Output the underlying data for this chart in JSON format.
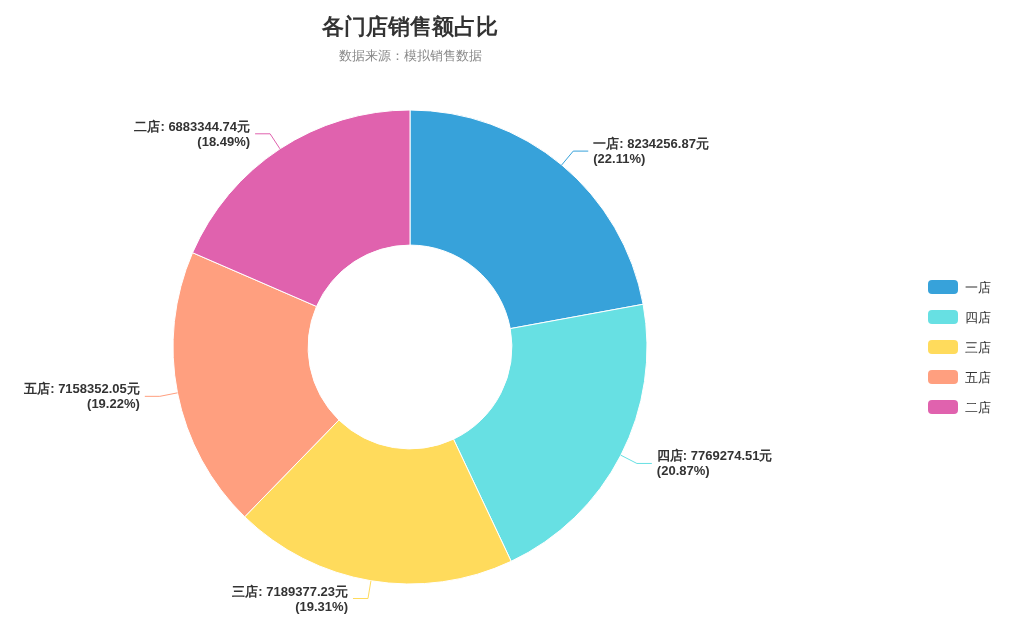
{
  "chart_data": {
    "type": "donut",
    "title": "各门店销售额占比",
    "subtitle": "数据来源：模拟销售数据",
    "categories": [
      "一店",
      "四店",
      "三店",
      "五店",
      "二店"
    ],
    "values": [
      8234256.87,
      7769274.51,
      7189377.23,
      7158352.05,
      6883344.74
    ],
    "colors": [
      "#37a2da",
      "#67e0e3",
      "#ffdb5c",
      "#ff9f7f",
      "#e062ae"
    ],
    "value_labels": [
      "一店: 8234256.87元\n(22.11%)",
      "四店: 7769274.51元\n(20.87%)",
      "三店: 7189377.23元\n(19.31%)",
      "五店: 7158352.05元\n(19.22%)",
      "二店: 6883344.74元\n(18.49%)"
    ],
    "legend": "right"
  }
}
